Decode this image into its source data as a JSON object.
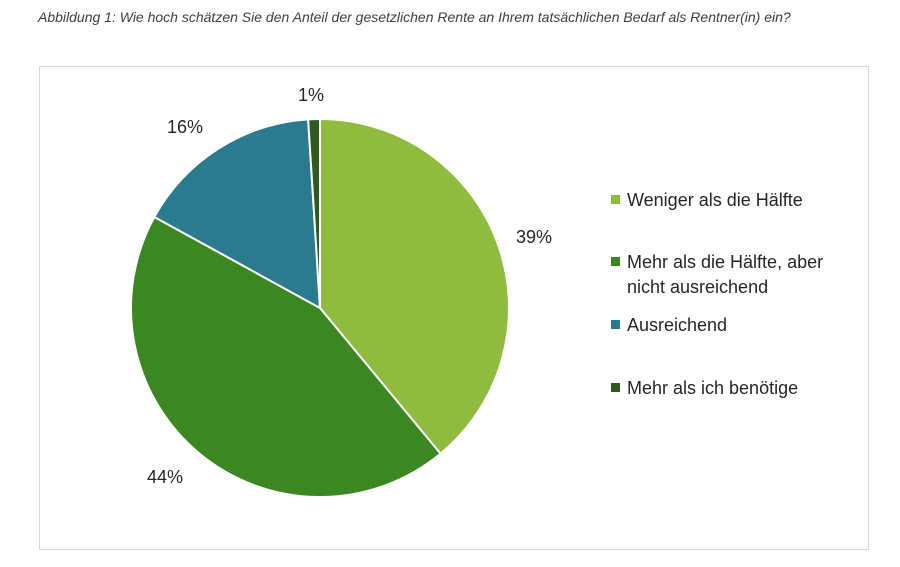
{
  "caption": "Abbildung 1: Wie hoch schätzen Sie den Anteil der gesetzlichen Rente an Ihrem tatsächlichen Bedarf als Rentner(in) ein?",
  "chart_data": {
    "type": "pie",
    "title": "",
    "slices": [
      {
        "label": "Weniger als die Hälfte",
        "legend_lines": [
          "Weniger als die Hälfte"
        ],
        "value": 39,
        "display": "39%",
        "color": "#8fbb3e"
      },
      {
        "label": "Mehr als die Hälfte, aber nicht ausreichend",
        "legend_lines": [
          "Mehr als die Hälfte, aber",
          "nicht ausreichend"
        ],
        "value": 44,
        "display": "44%",
        "color": "#3b8722"
      },
      {
        "label": "Ausreichend",
        "legend_lines": [
          "Ausreichend"
        ],
        "value": 16,
        "display": "16%",
        "color": "#2b7b8f"
      },
      {
        "label": "Mehr als ich benötige",
        "legend_lines": [
          "Mehr als ich benötige"
        ],
        "value": 1,
        "display": "1%",
        "color": "#2f5a1e"
      }
    ],
    "legend_position": "right",
    "start_angle": "12 o'clock",
    "direction": "clockwise"
  }
}
